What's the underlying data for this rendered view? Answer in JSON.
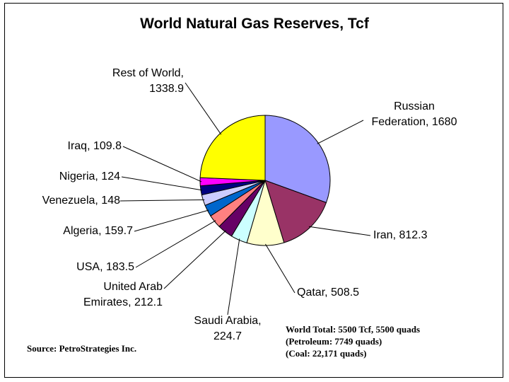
{
  "chart_data": {
    "type": "pie",
    "title": "World Natural Gas Reserves, Tcf",
    "labels": [
      "Russian Federation, 1680",
      "Iran, 812.3",
      "Qatar, 508.5",
      "Saudi Arabia, 224.7",
      "United Arab Emirates, 212.1",
      "USA, 183.5",
      "Algeria, 159.7",
      "Venezuela, 148",
      "Nigeria, 124",
      "Iraq, 109.8",
      "Rest of World, 1338.9"
    ],
    "values": [
      1680,
      812.3,
      508.5,
      224.7,
      212.1,
      183.5,
      159.7,
      148,
      124,
      109.8,
      1338.9
    ],
    "colors": [
      "#9999ff",
      "#993366",
      "#ffffcc",
      "#ccffff",
      "#660066",
      "#ff8080",
      "#0066cc",
      "#ccccff",
      "#000080",
      "#ff00ff",
      "#ffff00"
    ],
    "source": "Source: PetroStrategies Inc.",
    "notes": [
      "World Total:  5500 Tcf,  5500 quads",
      "(Petroleum: 7749 quads)",
      "(Coal:  22,171 quads)"
    ]
  }
}
